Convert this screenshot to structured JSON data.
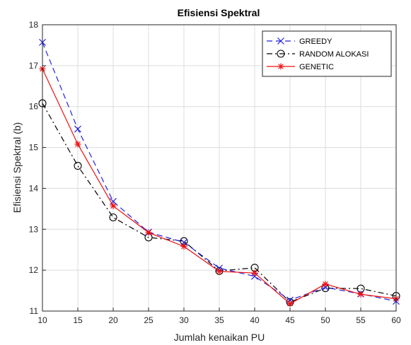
{
  "chart_data": {
    "type": "line",
    "title": "Efisiensi Spektral",
    "xlabel": "Jumlah kenaikan PU",
    "ylabel": "Efisiensi Spektral (b)",
    "xlim": [
      10,
      60
    ],
    "ylim": [
      11,
      18
    ],
    "xticks": [
      10,
      15,
      20,
      25,
      30,
      35,
      40,
      45,
      50,
      55,
      60
    ],
    "yticks": [
      11,
      12,
      13,
      14,
      15,
      16,
      17,
      18
    ],
    "grid": true,
    "legend_position": "top-right",
    "x": [
      10,
      15,
      20,
      25,
      30,
      35,
      40,
      45,
      50,
      55,
      60
    ],
    "series": [
      {
        "name": "GREEDY",
        "values": [
          17.57,
          15.45,
          13.68,
          12.93,
          12.68,
          12.05,
          11.85,
          11.27,
          11.58,
          11.42,
          11.24
        ],
        "color": "#2222dd",
        "dash": "dashed",
        "marker": "x"
      },
      {
        "name": "RANDOM ALOKASI",
        "values": [
          16.08,
          14.55,
          13.29,
          12.8,
          12.71,
          11.98,
          12.06,
          11.22,
          11.56,
          11.55,
          11.37
        ],
        "color": "#000000",
        "dash": "dashdot",
        "marker": "o"
      },
      {
        "name": "GENETIC",
        "values": [
          16.92,
          15.08,
          13.57,
          12.92,
          12.58,
          11.97,
          11.93,
          11.18,
          11.66,
          11.41,
          11.3
        ],
        "color": "#ee1111",
        "dash": "solid",
        "marker": "*"
      }
    ]
  }
}
